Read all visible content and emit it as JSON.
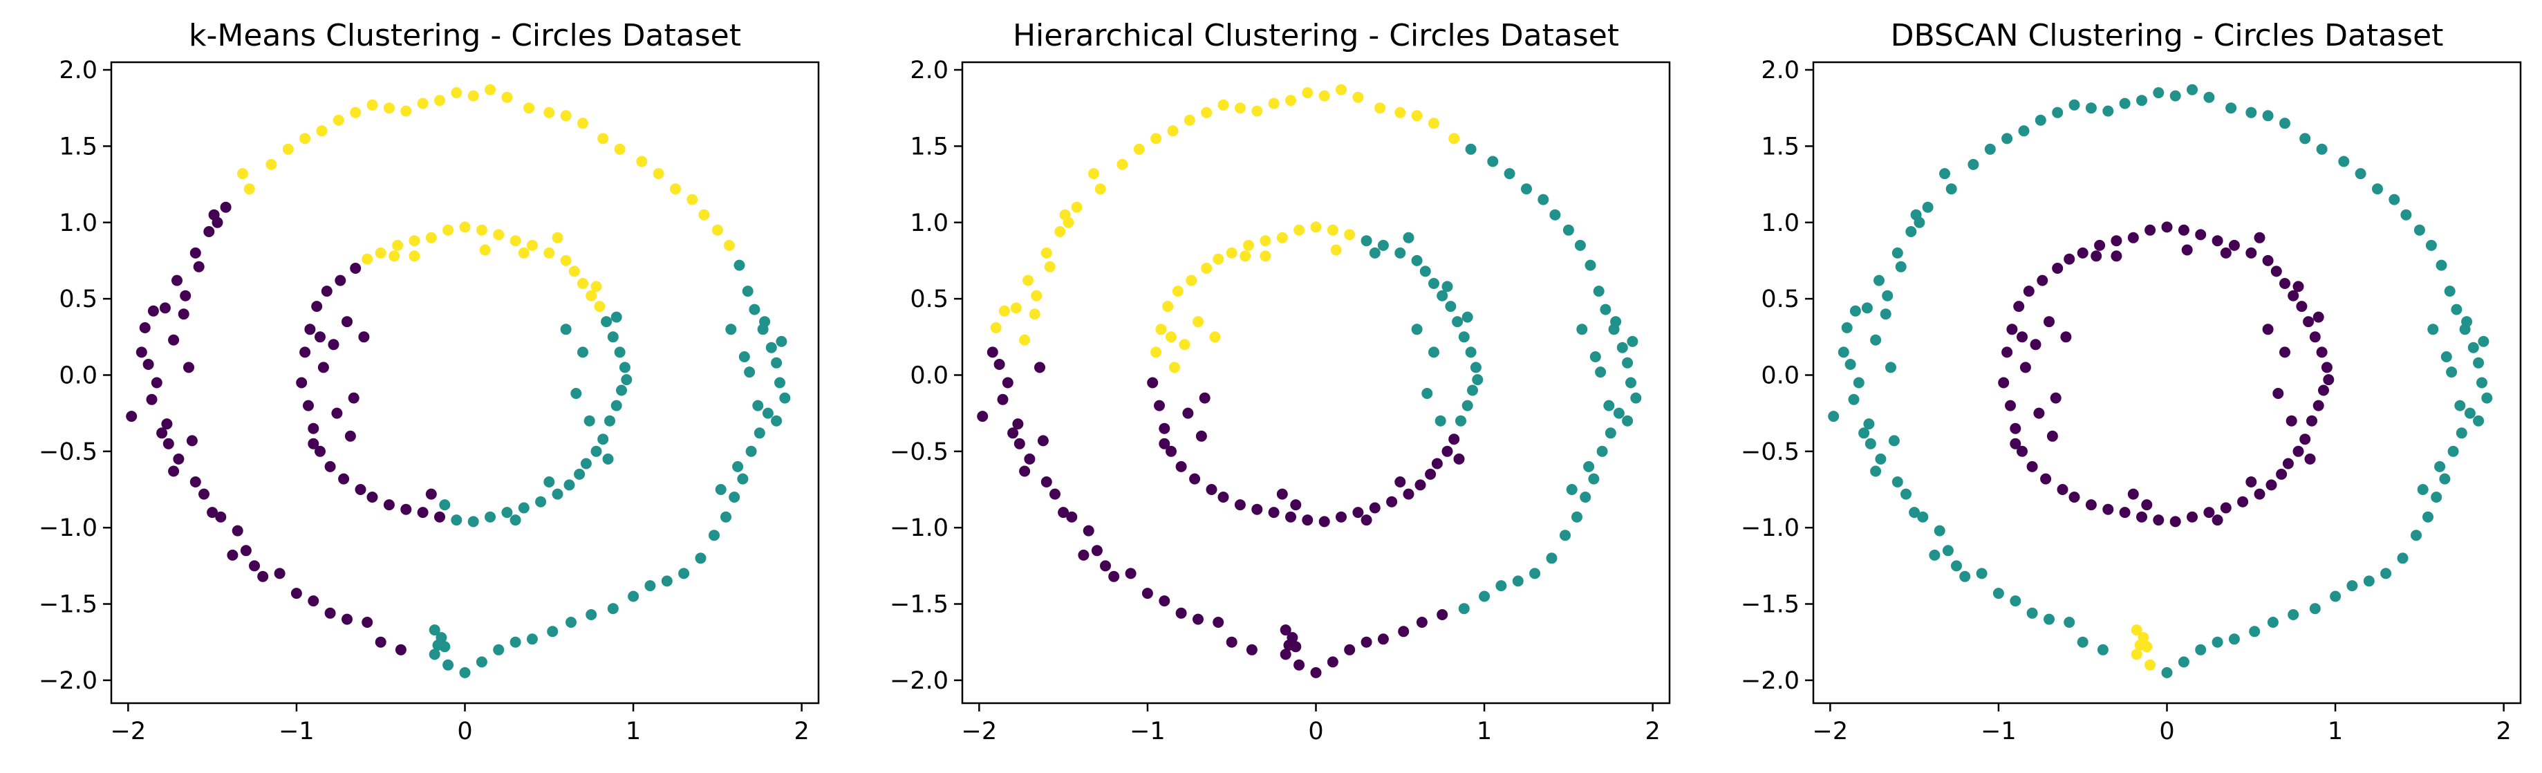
{
  "figure": {
    "colors": {
      "0": "#440154",
      "1": "#21918c",
      "2": "#fde725"
    },
    "axis_color": "#000000",
    "background": "#ffffff"
  },
  "chart_data": [
    {
      "type": "scatter",
      "title": "k-Means Clustering - Circles Dataset",
      "xlabel": "",
      "ylabel": "",
      "xlim": [
        -2.1,
        2.1
      ],
      "ylim": [
        -2.15,
        2.05
      ],
      "xticks": [
        -2,
        -1,
        0,
        1,
        2
      ],
      "yticks": [
        -2.0,
        -1.5,
        -1.0,
        -0.5,
        0.0,
        0.5,
        1.0,
        1.5,
        2.0
      ],
      "xtick_labels": [
        "−2",
        "−1",
        "0",
        "1",
        "2"
      ],
      "ytick_labels": [
        "−2.0",
        "−1.5",
        "−1.0",
        "−0.5",
        "0.0",
        "0.5",
        "1.0",
        "1.5",
        "2.0"
      ],
      "grid": false,
      "assignment": "kmeans",
      "cluster_colors": [
        "#440154",
        "#21918c",
        "#fde725"
      ]
    },
    {
      "type": "scatter",
      "title": "Hierarchical Clustering - Circles Dataset",
      "xlabel": "",
      "ylabel": "",
      "xlim": [
        -2.1,
        2.1
      ],
      "ylim": [
        -2.15,
        2.05
      ],
      "xticks": [
        -2,
        -1,
        0,
        1,
        2
      ],
      "yticks": [
        -2.0,
        -1.5,
        -1.0,
        -0.5,
        0.0,
        0.5,
        1.0,
        1.5,
        2.0
      ],
      "xtick_labels": [
        "−2",
        "−1",
        "0",
        "1",
        "2"
      ],
      "ytick_labels": [
        "−2.0",
        "−1.5",
        "−1.0",
        "−0.5",
        "0.0",
        "0.5",
        "1.0",
        "1.5",
        "2.0"
      ],
      "grid": false,
      "assignment": "hierarchical",
      "cluster_colors": [
        "#440154",
        "#21918c",
        "#fde725"
      ]
    },
    {
      "type": "scatter",
      "title": "DBSCAN Clustering - Circles Dataset",
      "xlabel": "",
      "ylabel": "",
      "xlim": [
        -2.1,
        2.1
      ],
      "ylim": [
        -2.15,
        2.05
      ],
      "xticks": [
        -2,
        -1,
        0,
        1,
        2
      ],
      "yticks": [
        -2.0,
        -1.5,
        -1.0,
        -0.5,
        0.0,
        0.5,
        1.0,
        1.5,
        2.0
      ],
      "xtick_labels": [
        "−2",
        "−1",
        "0",
        "1",
        "2"
      ],
      "ytick_labels": [
        "−2.0",
        "−1.5",
        "−1.0",
        "−0.5",
        "0.0",
        "0.5",
        "1.0",
        "1.5",
        "2.0"
      ],
      "grid": false,
      "assignment": "dbscan",
      "cluster_colors": [
        "#440154",
        "#21918c",
        "#fde725"
      ]
    }
  ],
  "points": [
    [
      -1.98,
      -0.27
    ],
    [
      -1.92,
      0.15
    ],
    [
      -1.9,
      0.31
    ],
    [
      -1.88,
      0.07
    ],
    [
      -1.86,
      -0.16
    ],
    [
      -1.83,
      -0.05
    ],
    [
      -1.8,
      -0.38
    ],
    [
      -1.78,
      0.44
    ],
    [
      -1.76,
      -0.45
    ],
    [
      -1.73,
      0.23
    ],
    [
      -1.71,
      0.62
    ],
    [
      -1.7,
      -0.55
    ],
    [
      -1.67,
      0.4
    ],
    [
      -1.64,
      0.05
    ],
    [
      -1.62,
      -0.43
    ],
    [
      -1.6,
      0.8
    ],
    [
      -1.58,
      0.71
    ],
    [
      -1.55,
      -0.78
    ],
    [
      -1.52,
      0.94
    ],
    [
      -1.49,
      1.05
    ],
    [
      -1.45,
      -0.93
    ],
    [
      -1.42,
      1.1
    ],
    [
      -1.38,
      -1.18
    ],
    [
      -1.35,
      -1.02
    ],
    [
      -1.32,
      1.32
    ],
    [
      -1.28,
      1.22
    ],
    [
      -1.25,
      -1.25
    ],
    [
      -1.2,
      -1.32
    ],
    [
      -1.15,
      1.38
    ],
    [
      -1.1,
      -1.3
    ],
    [
      -1.05,
      1.48
    ],
    [
      -1.0,
      -1.43
    ],
    [
      -0.95,
      1.55
    ],
    [
      -0.9,
      -1.48
    ],
    [
      -0.85,
      1.6
    ],
    [
      -0.8,
      -1.56
    ],
    [
      -0.75,
      1.67
    ],
    [
      -0.7,
      -1.6
    ],
    [
      -0.65,
      1.72
    ],
    [
      -0.58,
      -1.62
    ],
    [
      -0.55,
      1.77
    ],
    [
      -0.5,
      -1.75
    ],
    [
      -0.45,
      1.75
    ],
    [
      -0.38,
      -1.8
    ],
    [
      -0.35,
      1.73
    ],
    [
      -0.25,
      1.78
    ],
    [
      -0.18,
      -1.83
    ],
    [
      -0.15,
      1.8
    ],
    [
      -0.1,
      -1.9
    ],
    [
      -0.05,
      1.85
    ],
    [
      0.0,
      -1.95
    ],
    [
      0.05,
      1.83
    ],
    [
      0.1,
      -1.88
    ],
    [
      0.15,
      1.87
    ],
    [
      0.2,
      -1.8
    ],
    [
      0.25,
      1.82
    ],
    [
      0.3,
      -1.75
    ],
    [
      0.38,
      1.75
    ],
    [
      0.4,
      -1.73
    ],
    [
      0.5,
      1.72
    ],
    [
      0.52,
      -1.68
    ],
    [
      0.6,
      1.7
    ],
    [
      0.63,
      -1.62
    ],
    [
      0.7,
      1.65
    ],
    [
      0.75,
      -1.57
    ],
    [
      0.82,
      1.55
    ],
    [
      0.88,
      -1.53
    ],
    [
      0.92,
      1.48
    ],
    [
      1.0,
      -1.45
    ],
    [
      1.05,
      1.4
    ],
    [
      1.1,
      -1.38
    ],
    [
      1.15,
      1.32
    ],
    [
      1.2,
      -1.35
    ],
    [
      1.25,
      1.22
    ],
    [
      1.3,
      -1.3
    ],
    [
      1.35,
      1.15
    ],
    [
      1.4,
      -1.2
    ],
    [
      1.42,
      1.05
    ],
    [
      1.48,
      -1.05
    ],
    [
      1.5,
      0.95
    ],
    [
      1.55,
      -0.93
    ],
    [
      1.57,
      0.85
    ],
    [
      1.6,
      -0.8
    ],
    [
      1.63,
      0.72
    ],
    [
      1.65,
      -0.68
    ],
    [
      1.68,
      0.55
    ],
    [
      1.7,
      -0.5
    ],
    [
      1.72,
      0.43
    ],
    [
      1.75,
      -0.38
    ],
    [
      1.77,
      0.3
    ],
    [
      1.8,
      -0.25
    ],
    [
      1.82,
      0.18
    ],
    [
      1.85,
      0.08
    ],
    [
      1.87,
      -0.05
    ],
    [
      1.9,
      -0.15
    ],
    [
      1.88,
      0.22
    ],
    [
      1.85,
      -0.3
    ],
    [
      1.78,
      0.35
    ],
    [
      1.74,
      -0.2
    ],
    [
      1.69,
      0.02
    ],
    [
      1.66,
      0.12
    ],
    [
      1.62,
      -0.6
    ],
    [
      1.58,
      0.3
    ],
    [
      1.52,
      -0.75
    ],
    [
      -1.85,
      0.42
    ],
    [
      -1.77,
      -0.32
    ],
    [
      -1.73,
      -0.63
    ],
    [
      -1.66,
      0.52
    ],
    [
      -1.6,
      -0.7
    ],
    [
      -1.5,
      -0.9
    ],
    [
      -1.47,
      1.0
    ],
    [
      -1.3,
      -1.15
    ],
    [
      -0.97,
      -0.05
    ],
    [
      -0.95,
      0.15
    ],
    [
      -0.93,
      -0.2
    ],
    [
      -0.92,
      0.3
    ],
    [
      -0.9,
      -0.35
    ],
    [
      -0.88,
      0.45
    ],
    [
      -0.86,
      -0.5
    ],
    [
      -0.84,
      0.05
    ],
    [
      -0.82,
      0.55
    ],
    [
      -0.8,
      -0.6
    ],
    [
      -0.78,
      0.2
    ],
    [
      -0.76,
      -0.25
    ],
    [
      -0.74,
      0.62
    ],
    [
      -0.72,
      -0.68
    ],
    [
      -0.7,
      0.35
    ],
    [
      -0.68,
      -0.4
    ],
    [
      -0.65,
      0.7
    ],
    [
      -0.62,
      -0.75
    ],
    [
      -0.58,
      0.76
    ],
    [
      -0.55,
      -0.8
    ],
    [
      -0.5,
      0.8
    ],
    [
      -0.45,
      -0.85
    ],
    [
      -0.4,
      0.85
    ],
    [
      -0.35,
      -0.88
    ],
    [
      -0.3,
      0.88
    ],
    [
      -0.25,
      -0.9
    ],
    [
      -0.2,
      0.9
    ],
    [
      -0.15,
      -0.93
    ],
    [
      -0.1,
      0.95
    ],
    [
      -0.05,
      -0.95
    ],
    [
      0.0,
      0.97
    ],
    [
      0.05,
      -0.96
    ],
    [
      0.1,
      0.95
    ],
    [
      0.15,
      -0.93
    ],
    [
      0.2,
      0.92
    ],
    [
      0.25,
      -0.9
    ],
    [
      0.3,
      0.88
    ],
    [
      0.35,
      -0.87
    ],
    [
      0.4,
      0.85
    ],
    [
      0.45,
      -0.83
    ],
    [
      0.5,
      0.8
    ],
    [
      0.55,
      -0.78
    ],
    [
      0.6,
      0.75
    ],
    [
      0.62,
      -0.72
    ],
    [
      0.65,
      0.68
    ],
    [
      0.68,
      -0.65
    ],
    [
      0.7,
      0.6
    ],
    [
      0.72,
      -0.58
    ],
    [
      0.75,
      0.52
    ],
    [
      0.78,
      -0.5
    ],
    [
      0.8,
      0.45
    ],
    [
      0.82,
      -0.42
    ],
    [
      0.84,
      0.35
    ],
    [
      0.86,
      -0.3
    ],
    [
      0.88,
      0.25
    ],
    [
      0.9,
      -0.2
    ],
    [
      0.92,
      0.15
    ],
    [
      0.93,
      -0.1
    ],
    [
      0.95,
      0.05
    ],
    [
      0.96,
      -0.03
    ],
    [
      0.9,
      0.38
    ],
    [
      0.85,
      -0.55
    ],
    [
      0.78,
      0.58
    ],
    [
      0.74,
      -0.3
    ],
    [
      0.7,
      0.15
    ],
    [
      0.66,
      -0.12
    ],
    [
      0.6,
      0.3
    ],
    [
      -0.6,
      0.25
    ],
    [
      -0.66,
      -0.15
    ],
    [
      -0.86,
      0.25
    ],
    [
      -0.9,
      -0.45
    ],
    [
      -0.2,
      -0.78
    ],
    [
      0.3,
      -0.95
    ],
    [
      -0.42,
      0.78
    ],
    [
      0.35,
      0.8
    ],
    [
      0.55,
      0.9
    ],
    [
      -0.3,
      0.78
    ],
    [
      0.12,
      0.82
    ],
    [
      -0.12,
      -0.85
    ],
    [
      0.5,
      -0.7
    ],
    [
      -0.18,
      -1.67
    ],
    [
      -0.14,
      -1.72
    ],
    [
      -0.12,
      -1.78
    ],
    [
      -0.16,
      -1.77
    ]
  ]
}
